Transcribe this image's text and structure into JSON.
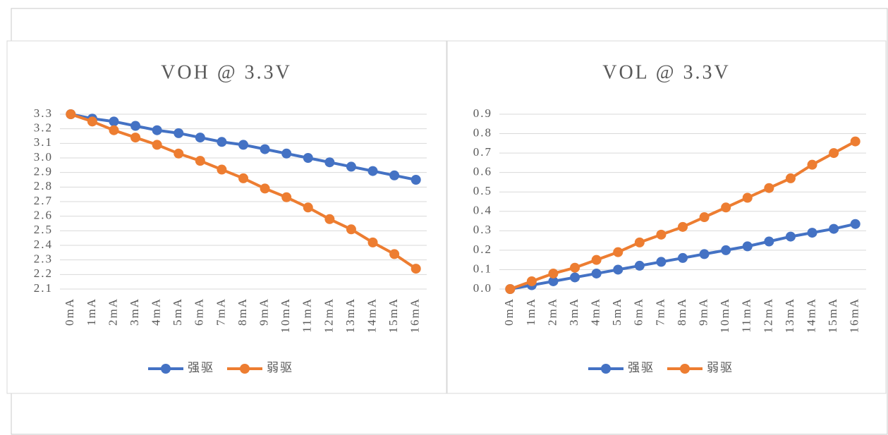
{
  "chart_data": [
    {
      "type": "line",
      "title": "VOH @ 3.3V",
      "categories": [
        "0mA",
        "1mA",
        "2mA",
        "3mA",
        "4mA",
        "5mA",
        "6mA",
        "7mA",
        "8mA",
        "9mA",
        "10mA",
        "11mA",
        "12mA",
        "13mA",
        "14mA",
        "15mA",
        "16mA"
      ],
      "series": [
        {
          "name": "强驱",
          "color": "#4472c4",
          "values": [
            3.3,
            3.27,
            3.25,
            3.22,
            3.19,
            3.17,
            3.14,
            3.11,
            3.09,
            3.06,
            3.03,
            3.0,
            2.97,
            2.94,
            2.91,
            2.88,
            2.85
          ]
        },
        {
          "name": "弱驱",
          "color": "#ed7d31",
          "values": [
            3.3,
            3.25,
            3.19,
            3.14,
            3.09,
            3.03,
            2.98,
            2.92,
            2.86,
            2.79,
            2.73,
            2.66,
            2.58,
            2.51,
            2.42,
            2.34,
            2.24
          ]
        }
      ],
      "ylim": [
        2.1,
        3.3
      ],
      "yticks": [
        2.1,
        2.2,
        2.3,
        2.4,
        2.5,
        2.6,
        2.7,
        2.8,
        2.9,
        {
          "value": 3,
          "label": "3.0"
        },
        3.1,
        3.2,
        3.3
      ],
      "grid": true,
      "legend": "bottom"
    },
    {
      "type": "line",
      "title": "VOL @ 3.3V",
      "categories": [
        "0mA",
        "1mA",
        "2mA",
        "3mA",
        "4mA",
        "5mA",
        "6mA",
        "7mA",
        "8mA",
        "9mA",
        "10mA",
        "11mA",
        "12mA",
        "13mA",
        "14mA",
        "15mA",
        "16mA"
      ],
      "series": [
        {
          "name": "强驱",
          "color": "#4472c4",
          "values": [
            0,
            0.02,
            0.04,
            0.06,
            0.08,
            0.1,
            0.12,
            0.14,
            0.16,
            0.18,
            0.2,
            0.22,
            0.245,
            0.27,
            0.29,
            0.31,
            0.335
          ]
        },
        {
          "name": "弱驱",
          "color": "#ed7d31",
          "values": [
            0,
            0.04,
            0.08,
            0.11,
            0.15,
            0.19,
            0.24,
            0.28,
            0.32,
            0.37,
            0.42,
            0.47,
            0.52,
            0.57,
            0.64,
            0.7,
            0.76
          ]
        }
      ],
      "ylim": [
        0,
        0.9
      ],
      "yticks": [
        {
          "value": 0,
          "label": "0.0"
        },
        0.1,
        0.2,
        0.3,
        0.4,
        0.5,
        0.6,
        0.7,
        0.8,
        0.9
      ],
      "grid": true,
      "legend": "bottom"
    }
  ]
}
